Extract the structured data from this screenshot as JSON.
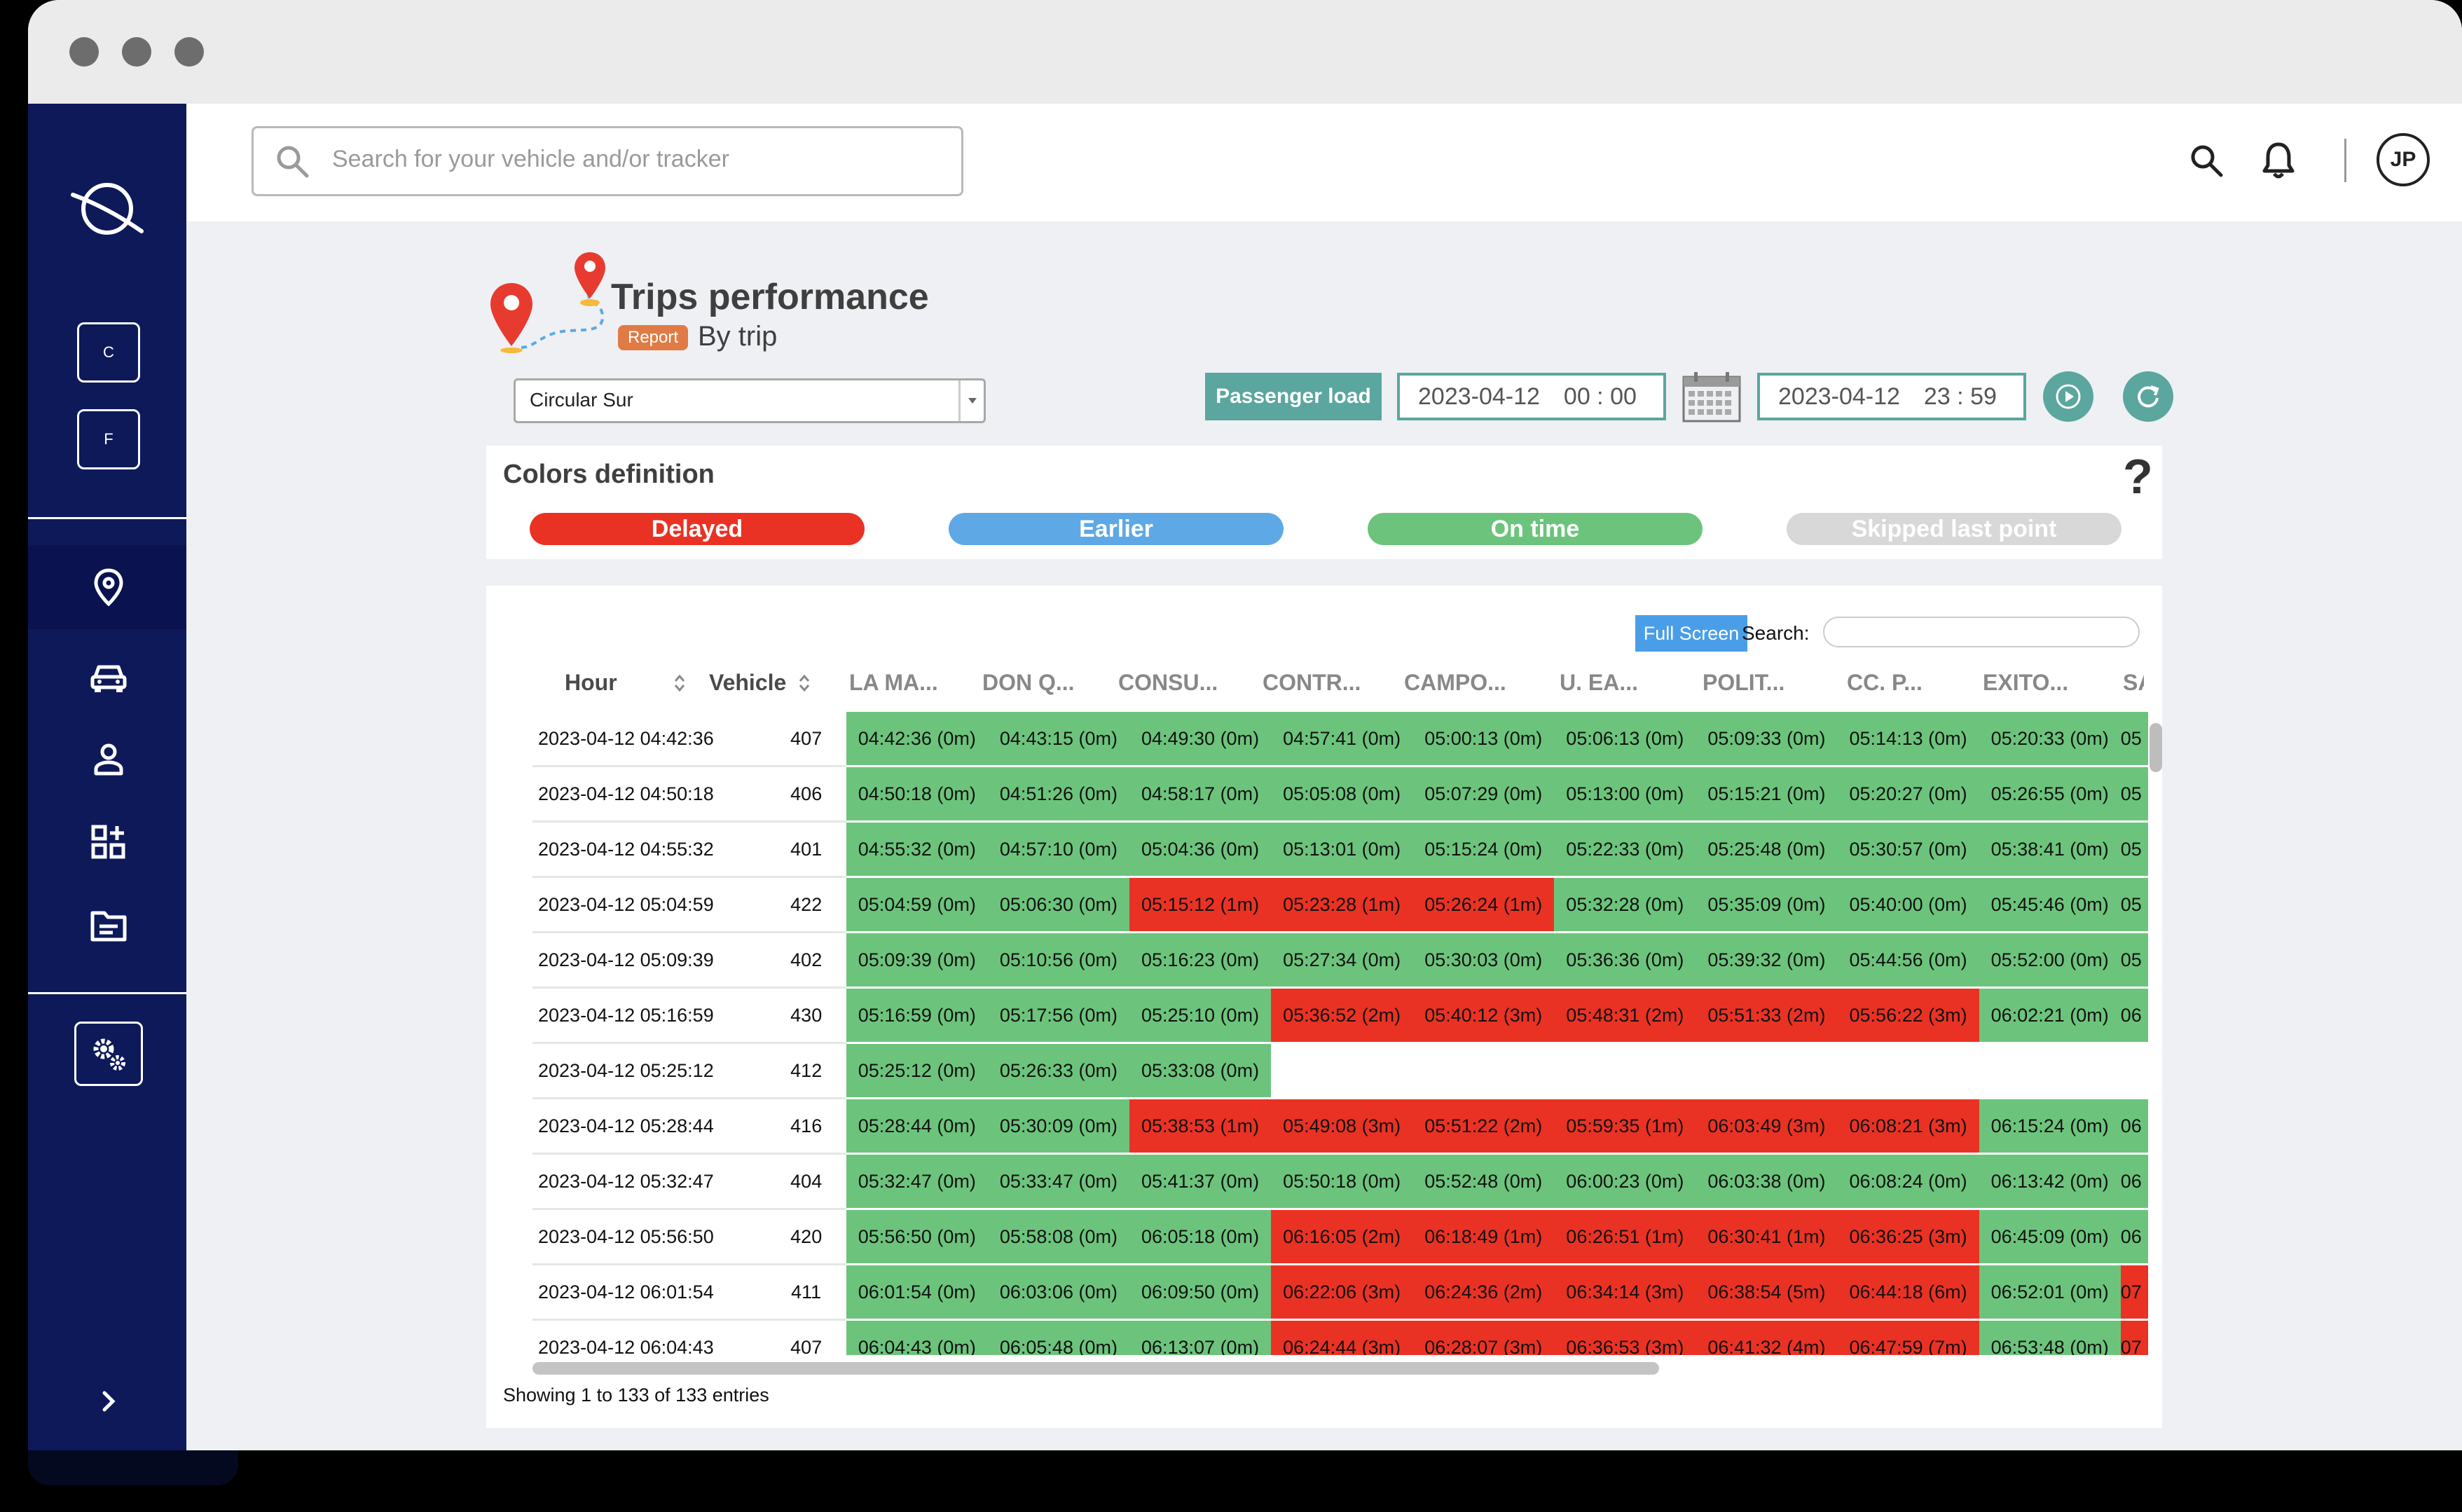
{
  "search": {
    "placeholder": "Search for your vehicle and/or tracker"
  },
  "user": {
    "initials": "JP"
  },
  "sidebar": {
    "btn_c": "C",
    "btn_f": "F"
  },
  "page": {
    "title": "Trips performance",
    "badge": "Report",
    "subtitle": "By trip"
  },
  "route_select": {
    "value": "Circular Sur"
  },
  "toolbar": {
    "passenger_load": "Passenger load",
    "date_from": "2023-04-12",
    "time_from": "00 : 00",
    "date_to": "2023-04-12",
    "time_to": "23 : 59"
  },
  "colors_definition": {
    "title": "Colors definition",
    "help": "?",
    "items": [
      {
        "label": "Delayed",
        "color": "#ea3224"
      },
      {
        "label": "Earlier",
        "color": "#5ea8e6"
      },
      {
        "label": "On time",
        "color": "#6cc47c"
      },
      {
        "label": "Skipped last point",
        "color": "#d8d8d8"
      }
    ]
  },
  "table": {
    "full_screen": "Full Screen",
    "search_label": "Search:",
    "columns": [
      "Hour",
      "Vehicle",
      "LA MA...",
      "DON Q...",
      "CONSU...",
      "CONTR...",
      "CAMPO...",
      "U. EA...",
      "POLIT...",
      "CC. P...",
      "EXITO...",
      "SA"
    ],
    "rows": [
      {
        "hour": "2023-04-12 04:42:36",
        "vehicle": "407",
        "cells": [
          [
            "04:42:36 (0m)",
            "g"
          ],
          [
            "04:43:15 (0m)",
            "g"
          ],
          [
            "04:49:30 (0m)",
            "g"
          ],
          [
            "04:57:41 (0m)",
            "g"
          ],
          [
            "05:00:13 (0m)",
            "g"
          ],
          [
            "05:06:13 (0m)",
            "g"
          ],
          [
            "05:09:33 (0m)",
            "g"
          ],
          [
            "05:14:13 (0m)",
            "g"
          ],
          [
            "05:20:33 (0m)",
            "g"
          ],
          [
            "05",
            "g"
          ]
        ]
      },
      {
        "hour": "2023-04-12 04:50:18",
        "vehicle": "406",
        "cells": [
          [
            "04:50:18 (0m)",
            "g"
          ],
          [
            "04:51:26 (0m)",
            "g"
          ],
          [
            "04:58:17 (0m)",
            "g"
          ],
          [
            "05:05:08 (0m)",
            "g"
          ],
          [
            "05:07:29 (0m)",
            "g"
          ],
          [
            "05:13:00 (0m)",
            "g"
          ],
          [
            "05:15:21 (0m)",
            "g"
          ],
          [
            "05:20:27 (0m)",
            "g"
          ],
          [
            "05:26:55 (0m)",
            "g"
          ],
          [
            "05",
            "g"
          ]
        ]
      },
      {
        "hour": "2023-04-12 04:55:32",
        "vehicle": "401",
        "cells": [
          [
            "04:55:32 (0m)",
            "g"
          ],
          [
            "04:57:10 (0m)",
            "g"
          ],
          [
            "05:04:36 (0m)",
            "g"
          ],
          [
            "05:13:01 (0m)",
            "g"
          ],
          [
            "05:15:24 (0m)",
            "g"
          ],
          [
            "05:22:33 (0m)",
            "g"
          ],
          [
            "05:25:48 (0m)",
            "g"
          ],
          [
            "05:30:57 (0m)",
            "g"
          ],
          [
            "05:38:41 (0m)",
            "g"
          ],
          [
            "05",
            "g"
          ]
        ]
      },
      {
        "hour": "2023-04-12 05:04:59",
        "vehicle": "422",
        "cells": [
          [
            "05:04:59 (0m)",
            "g"
          ],
          [
            "05:06:30 (0m)",
            "g"
          ],
          [
            "05:15:12 (1m)",
            "r"
          ],
          [
            "05:23:28 (1m)",
            "r"
          ],
          [
            "05:26:24 (1m)",
            "r"
          ],
          [
            "05:32:28 (0m)",
            "g"
          ],
          [
            "05:35:09 (0m)",
            "g"
          ],
          [
            "05:40:00 (0m)",
            "g"
          ],
          [
            "05:45:46 (0m)",
            "g"
          ],
          [
            "05",
            "g"
          ]
        ]
      },
      {
        "hour": "2023-04-12 05:09:39",
        "vehicle": "402",
        "cells": [
          [
            "05:09:39 (0m)",
            "g"
          ],
          [
            "05:10:56 (0m)",
            "g"
          ],
          [
            "05:16:23 (0m)",
            "g"
          ],
          [
            "05:27:34 (0m)",
            "g"
          ],
          [
            "05:30:03 (0m)",
            "g"
          ],
          [
            "05:36:36 (0m)",
            "g"
          ],
          [
            "05:39:32 (0m)",
            "g"
          ],
          [
            "05:44:56 (0m)",
            "g"
          ],
          [
            "05:52:00 (0m)",
            "g"
          ],
          [
            "05",
            "g"
          ]
        ]
      },
      {
        "hour": "2023-04-12 05:16:59",
        "vehicle": "430",
        "cells": [
          [
            "05:16:59 (0m)",
            "g"
          ],
          [
            "05:17:56 (0m)",
            "g"
          ],
          [
            "05:25:10 (0m)",
            "g"
          ],
          [
            "05:36:52 (2m)",
            "r"
          ],
          [
            "05:40:12 (3m)",
            "r"
          ],
          [
            "05:48:31 (2m)",
            "r"
          ],
          [
            "05:51:33 (2m)",
            "r"
          ],
          [
            "05:56:22 (3m)",
            "r"
          ],
          [
            "06:02:21 (0m)",
            "g"
          ],
          [
            "06",
            "g"
          ]
        ]
      },
      {
        "hour": "2023-04-12 05:25:12",
        "vehicle": "412",
        "cells": [
          [
            "05:25:12 (0m)",
            "g"
          ],
          [
            "05:26:33 (0m)",
            "g"
          ],
          [
            "05:33:08 (0m)",
            "g"
          ],
          [
            "",
            "w"
          ],
          [
            "",
            "w"
          ],
          [
            "",
            "w"
          ],
          [
            "",
            "w"
          ],
          [
            "",
            "w"
          ],
          [
            "",
            "w"
          ],
          [
            "",
            "w"
          ]
        ]
      },
      {
        "hour": "2023-04-12 05:28:44",
        "vehicle": "416",
        "cells": [
          [
            "05:28:44 (0m)",
            "g"
          ],
          [
            "05:30:09 (0m)",
            "g"
          ],
          [
            "05:38:53 (1m)",
            "r"
          ],
          [
            "05:49:08 (3m)",
            "r"
          ],
          [
            "05:51:22 (2m)",
            "r"
          ],
          [
            "05:59:35 (1m)",
            "r"
          ],
          [
            "06:03:49 (3m)",
            "r"
          ],
          [
            "06:08:21 (3m)",
            "r"
          ],
          [
            "06:15:24 (0m)",
            "g"
          ],
          [
            "06",
            "g"
          ]
        ]
      },
      {
        "hour": "2023-04-12 05:32:47",
        "vehicle": "404",
        "cells": [
          [
            "05:32:47 (0m)",
            "g"
          ],
          [
            "05:33:47 (0m)",
            "g"
          ],
          [
            "05:41:37 (0m)",
            "g"
          ],
          [
            "05:50:18 (0m)",
            "g"
          ],
          [
            "05:52:48 (0m)",
            "g"
          ],
          [
            "06:00:23 (0m)",
            "g"
          ],
          [
            "06:03:38 (0m)",
            "g"
          ],
          [
            "06:08:24 (0m)",
            "g"
          ],
          [
            "06:13:42 (0m)",
            "g"
          ],
          [
            "06",
            "g"
          ]
        ]
      },
      {
        "hour": "2023-04-12 05:56:50",
        "vehicle": "420",
        "cells": [
          [
            "05:56:50 (0m)",
            "g"
          ],
          [
            "05:58:08 (0m)",
            "g"
          ],
          [
            "06:05:18 (0m)",
            "g"
          ],
          [
            "06:16:05 (2m)",
            "r"
          ],
          [
            "06:18:49 (1m)",
            "r"
          ],
          [
            "06:26:51 (1m)",
            "r"
          ],
          [
            "06:30:41 (1m)",
            "r"
          ],
          [
            "06:36:25 (3m)",
            "r"
          ],
          [
            "06:45:09 (0m)",
            "g"
          ],
          [
            "06",
            "g"
          ]
        ]
      },
      {
        "hour": "2023-04-12 06:01:54",
        "vehicle": "411",
        "cells": [
          [
            "06:01:54 (0m)",
            "g"
          ],
          [
            "06:03:06 (0m)",
            "g"
          ],
          [
            "06:09:50 (0m)",
            "g"
          ],
          [
            "06:22:06 (3m)",
            "r"
          ],
          [
            "06:24:36 (2m)",
            "r"
          ],
          [
            "06:34:14 (3m)",
            "r"
          ],
          [
            "06:38:54 (5m)",
            "r"
          ],
          [
            "06:44:18 (6m)",
            "r"
          ],
          [
            "06:52:01 (0m)",
            "g"
          ],
          [
            "07",
            "r"
          ]
        ]
      },
      {
        "hour": "2023-04-12 06:04:43",
        "vehicle": "407",
        "cells": [
          [
            "06:04:43 (0m)",
            "g"
          ],
          [
            "06:05:48 (0m)",
            "g"
          ],
          [
            "06:13:07 (0m)",
            "g"
          ],
          [
            "06:24:44 (3m)",
            "r"
          ],
          [
            "06:28:07 (3m)",
            "r"
          ],
          [
            "06:36:53 (3m)",
            "r"
          ],
          [
            "06:41:32 (4m)",
            "r"
          ],
          [
            "06:47:59 (7m)",
            "r"
          ],
          [
            "06:53:48 (0m)",
            "g"
          ],
          [
            "07",
            "r"
          ]
        ]
      }
    ],
    "footer": "Showing 1 to 133 of 133 entries"
  }
}
